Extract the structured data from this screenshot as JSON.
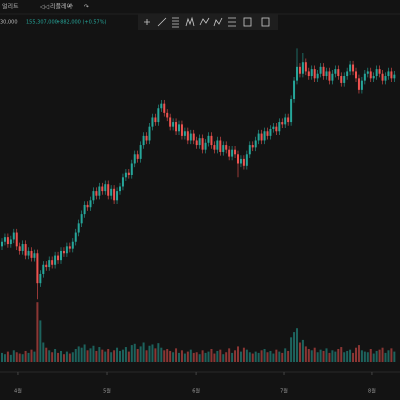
{
  "header": {
    "menu": "얼리트",
    "replay": "리플레이",
    "price_partial": "30,000",
    "last_price": "155,307,000",
    "change": "+882,000 (+0.57%)"
  },
  "chart_data": {
    "type": "candlestick",
    "up_color": "#26a69a",
    "down_color": "#ef5350",
    "ylim": [
      102,
      165
    ],
    "volume_lim": [
      0,
      100
    ],
    "xticks": [
      {
        "value": 5.4,
        "label": "4월"
      },
      {
        "value": 35.6,
        "label": "5월"
      },
      {
        "value": 65.8,
        "label": "6월"
      },
      {
        "value": 95.6,
        "label": "7월"
      },
      {
        "value": 125.4,
        "label": "8월"
      }
    ],
    "open": [
      118,
      119,
      120,
      118.5,
      119.5,
      121,
      118,
      117,
      118.5,
      116,
      117,
      115.5,
      116.5,
      110,
      112,
      114,
      113.5,
      115,
      114,
      116,
      115,
      117,
      116.5,
      118,
      117.5,
      119,
      121,
      123,
      125,
      127,
      126.5,
      128,
      130,
      129,
      131,
      130,
      131.5,
      129,
      130.5,
      128,
      130,
      131,
      133,
      134,
      133.5,
      136,
      138,
      137,
      140,
      142,
      141,
      144,
      146,
      145,
      148,
      149,
      147,
      146,
      144,
      145,
      143,
      144.5,
      142,
      143,
      141,
      142.5,
      141,
      140,
      141.5,
      139,
      140.5,
      142,
      140,
      139,
      141,
      138.5,
      140,
      139,
      137.5,
      139,
      138,
      136,
      137,
      135.5,
      138,
      140,
      139.5,
      141,
      142.5,
      141,
      143,
      142,
      143.5,
      144,
      143,
      145,
      144.5,
      146,
      145,
      150,
      154,
      157,
      155.5,
      158,
      156,
      155,
      156.5,
      154.5,
      155.5,
      157,
      155,
      156,
      154,
      155.5,
      156.5,
      155,
      153.5,
      155,
      156,
      157.5,
      156,
      154.5,
      152,
      154,
      155.5,
      156,
      154.5,
      155,
      156.5,
      155.5,
      154,
      155,
      156,
      154.5
    ],
    "high": [
      119.8,
      120.8,
      120.8,
      120.3,
      121.8,
      121.8,
      118.8,
      119.3,
      119.3,
      117.8,
      117.8,
      117.3,
      117.3,
      112.8,
      114.8,
      114.8,
      115.8,
      115.8,
      116.8,
      116.8,
      117.8,
      117.8,
      118.8,
      118.8,
      119.8,
      121.8,
      123.8,
      125.8,
      127.8,
      127.8,
      128.8,
      130.8,
      130.8,
      131.8,
      131.8,
      132.3,
      132.3,
      131.3,
      131.3,
      130.8,
      131.8,
      133.8,
      134.8,
      134.8,
      136.8,
      138.8,
      138.8,
      140.8,
      142.8,
      142.8,
      144.8,
      146.8,
      146.8,
      148.8,
      149.8,
      149.8,
      147.8,
      146.8,
      145.8,
      145.8,
      145.3,
      145.3,
      143.8,
      143.8,
      143.3,
      143.3,
      141.8,
      142.3,
      142.3,
      141.3,
      142.8,
      142.8,
      140.8,
      141.8,
      141.8,
      140.8,
      140.8,
      139.8,
      139.8,
      139.8,
      138.8,
      137.8,
      137.8,
      138.8,
      140.8,
      140.8,
      141.8,
      143.3,
      143.3,
      143.8,
      143.8,
      144.3,
      144.8,
      144.8,
      145.8,
      145.8,
      146.8,
      146.8,
      150.8,
      154.8,
      161,
      157.8,
      160,
      158.8,
      156.8,
      157.3,
      157.3,
      156.3,
      157.8,
      157.8,
      156.8,
      156.8,
      156.3,
      157.3,
      157.3,
      155.8,
      155.8,
      156.8,
      158.3,
      158.3,
      156.8,
      155.3,
      154.8,
      156.3,
      156.8,
      156.8,
      155.8,
      157.3,
      157.3,
      156.3,
      155.8,
      156.8,
      156.8,
      156.1
    ],
    "low": [
      117.2,
      118.2,
      117.7,
      117.7,
      118.7,
      117.2,
      116.2,
      116.2,
      115.2,
      115.2,
      114.7,
      114.7,
      106.5,
      109.2,
      111.2,
      112.7,
      112.7,
      113.2,
      113.2,
      114.2,
      114.2,
      115.7,
      115.7,
      116.7,
      116.7,
      118.2,
      120.2,
      122.2,
      124.2,
      125.7,
      125.7,
      127.2,
      128.2,
      128.2,
      129.2,
      129.2,
      128.2,
      128.2,
      127.2,
      127.2,
      129.2,
      130.2,
      132.2,
      132.7,
      132.7,
      135.2,
      136.2,
      136.2,
      139.2,
      140.2,
      140.2,
      143.2,
      144.2,
      144.2,
      147.2,
      146.2,
      145.2,
      143.2,
      143.2,
      142.2,
      142.2,
      141.2,
      141.2,
      140.2,
      140.2,
      140.2,
      139.2,
      139.2,
      138.2,
      138.2,
      139.7,
      139.2,
      138.2,
      138.2,
      137.7,
      137.7,
      138.2,
      136.7,
      136.7,
      137.2,
      133,
      135.2,
      134.7,
      134.7,
      137.2,
      138.7,
      138.7,
      140.2,
      140.2,
      140.2,
      141.2,
      141.2,
      142.7,
      142.2,
      142.2,
      143.7,
      143.7,
      144.2,
      144.2,
      149.2,
      153.2,
      154.7,
      154.7,
      155.2,
      154.2,
      154.2,
      153.7,
      153.7,
      154.7,
      154.2,
      154.2,
      153.2,
      153.2,
      154.7,
      154.2,
      152.7,
      152.7,
      154.2,
      155.2,
      155.2,
      153.7,
      151.2,
      151.2,
      153.2,
      154.7,
      153.7,
      153.7,
      154.2,
      154.7,
      153.2,
      153.2,
      154.2,
      153.7,
      153.7
    ],
    "close": [
      119,
      120,
      118.5,
      119.5,
      121,
      118,
      117,
      118.5,
      116,
      117,
      115.5,
      116.5,
      110,
      112,
      114,
      113.5,
      115,
      114,
      116,
      115,
      117,
      116.5,
      118,
      117.5,
      119,
      121,
      123,
      125,
      127,
      126.5,
      128,
      130,
      129,
      131,
      130,
      131.5,
      129,
      130.5,
      128,
      130,
      131,
      133,
      134,
      133.5,
      136,
      138,
      137,
      140,
      142,
      141,
      144,
      146,
      145,
      148,
      149,
      147,
      146,
      144,
      145,
      143,
      144.5,
      142,
      143,
      141,
      142.5,
      141,
      140,
      141.5,
      139,
      140.5,
      142,
      140,
      139,
      141,
      138.5,
      140,
      139,
      137.5,
      139,
      138,
      136,
      137,
      135.5,
      138,
      140,
      139.5,
      141,
      142.5,
      141,
      143,
      142,
      143.5,
      144,
      143,
      145,
      144.5,
      146,
      145,
      150,
      154,
      157,
      155.5,
      158,
      156,
      155,
      156.5,
      154.5,
      155.5,
      157,
      155,
      156,
      154,
      155.5,
      156.5,
      155,
      153.5,
      155,
      156,
      157.5,
      156,
      154.5,
      152,
      154,
      155.5,
      156,
      154.5,
      155,
      156.5,
      155.5,
      154,
      155,
      156,
      154.5,
      155.3
    ],
    "volume": [
      14,
      12,
      16,
      11,
      18,
      15,
      13,
      12,
      17,
      14,
      19,
      16,
      92,
      64,
      30,
      22,
      18,
      15,
      20,
      14,
      17,
      12,
      16,
      13,
      15,
      20,
      24,
      22,
      27,
      18,
      21,
      25,
      17,
      23,
      19,
      16,
      20,
      15,
      18,
      22,
      17,
      19,
      23,
      16,
      26,
      28,
      20,
      24,
      30,
      18,
      25,
      27,
      21,
      29,
      22,
      18,
      20,
      17,
      15,
      21,
      14,
      18,
      13,
      16,
      19,
      14,
      15,
      12,
      18,
      14,
      16,
      20,
      13,
      17,
      19,
      12,
      15,
      21,
      14,
      18,
      24,
      16,
      22,
      19,
      15,
      13,
      16,
      14,
      18,
      20,
      15,
      17,
      13,
      19,
      16,
      14,
      21,
      17,
      38,
      46,
      52,
      30,
      34,
      24,
      20,
      18,
      22,
      15,
      19,
      17,
      21,
      14,
      18,
      16,
      20,
      23,
      15,
      17,
      19,
      14,
      22,
      26,
      18,
      16,
      15,
      20,
      13,
      17,
      19,
      22,
      14,
      18,
      21,
      16
    ]
  }
}
